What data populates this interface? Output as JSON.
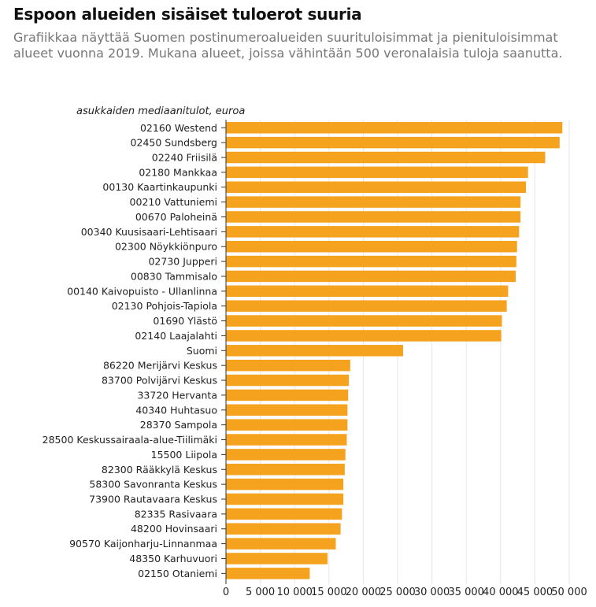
{
  "title": "Espoon alueiden sisäiset tuloerot suuria",
  "subtitle": "Grafiikkaa näyttää Suomen postinumeroalueiden suurituloisimmat ja pienituloisimmat alueet vuonna 2019. Mukana alueet, joissa vähintään 500 veronalaisia tuloja saanutta.",
  "colors": {
    "bar": "#f5a31f",
    "grid": "#e6e6e6",
    "axis": "#333333",
    "text": "#222222"
  },
  "chart_data": {
    "type": "bar",
    "orientation": "horizontal",
    "ylabel": "asukkaiden mediaanitulot, euroa",
    "xlim": [
      0,
      50000
    ],
    "xticks": [
      0,
      5000,
      10000,
      15000,
      20000,
      25000,
      30000,
      35000,
      40000,
      45000,
      50000
    ],
    "xtick_labels": [
      "0",
      "5 000",
      "10 000",
      "15 000",
      "20 000",
      "25 000",
      "30 000",
      "35 000",
      "40 000",
      "45 000",
      "50 000"
    ],
    "grid": true,
    "categories": [
      "02160 Westend",
      "02450 Sundsberg",
      "02240 Friisilä",
      "02180 Mankkaa",
      "00130 Kaartinkaupunki",
      "00210 Vattuniemi",
      "00670 Paloheinä",
      "00340 Kuusisaari-Lehtisaari",
      "02300 Nöykkiönpuro",
      "02730 Jupperi",
      "00830 Tammisalo",
      "00140 Kaivopuisto - Ullanlinna",
      "02130 Pohjois-Tapiola",
      "01690 Ylästö",
      "02140 Laajalahti",
      "Suomi",
      "86220 Merijärvi Keskus",
      "83700 Polvijärvi Keskus",
      "33720 Hervanta",
      "40340 Huhtasuo",
      "28370 Sampola",
      "28500 Keskussairaala-alue-Tiilimäki",
      "15500 Liipola",
      "82300 Rääkkylä Keskus",
      "58300 Savonranta Keskus",
      "73900 Rautavaara Keskus",
      "82335 Rasivaara",
      "48200 Hovinsaari",
      "90570 Kaijonharju-Linnanmaa",
      "48350 Karhuvuori",
      "02150 Otaniemi"
    ],
    "values": [
      49000,
      48600,
      46500,
      44000,
      43700,
      42900,
      42900,
      42700,
      42400,
      42300,
      42200,
      41100,
      40900,
      40200,
      40100,
      25800,
      18100,
      17900,
      17800,
      17700,
      17700,
      17600,
      17400,
      17300,
      17100,
      17100,
      16900,
      16700,
      16000,
      14800,
      12200
    ]
  }
}
